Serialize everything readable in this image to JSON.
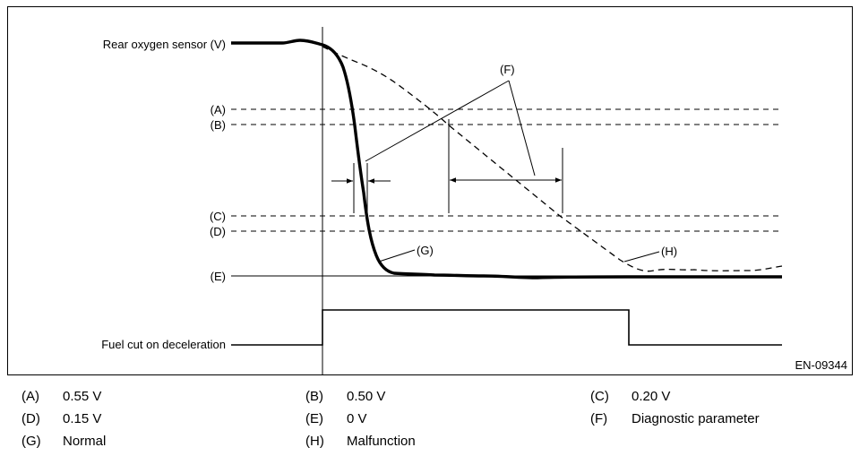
{
  "diagram": {
    "y_label": "Rear oxygen sensor (V)",
    "fuel_cut_label": "Fuel cut on deceleration",
    "figure_code": "EN-09344",
    "levels": [
      {
        "key": "(A)"
      },
      {
        "key": "(B)"
      },
      {
        "key": "(C)"
      },
      {
        "key": "(D)"
      },
      {
        "key": "(E)"
      }
    ],
    "callouts": {
      "f": "(F)",
      "g": "(G)",
      "h": "(H)"
    }
  },
  "legend": [
    {
      "key": "(A)",
      "value": "0.55 V"
    },
    {
      "key": "(B)",
      "value": "0.50 V"
    },
    {
      "key": "(C)",
      "value": "0.20 V"
    },
    {
      "key": "(D)",
      "value": "0.15 V"
    },
    {
      "key": "(E)",
      "value": "0 V"
    },
    {
      "key": "(F)",
      "value": "Diagnostic parameter"
    },
    {
      "key": "(G)",
      "value": "Normal"
    },
    {
      "key": "(H)",
      "value": "Malfunction"
    }
  ]
}
